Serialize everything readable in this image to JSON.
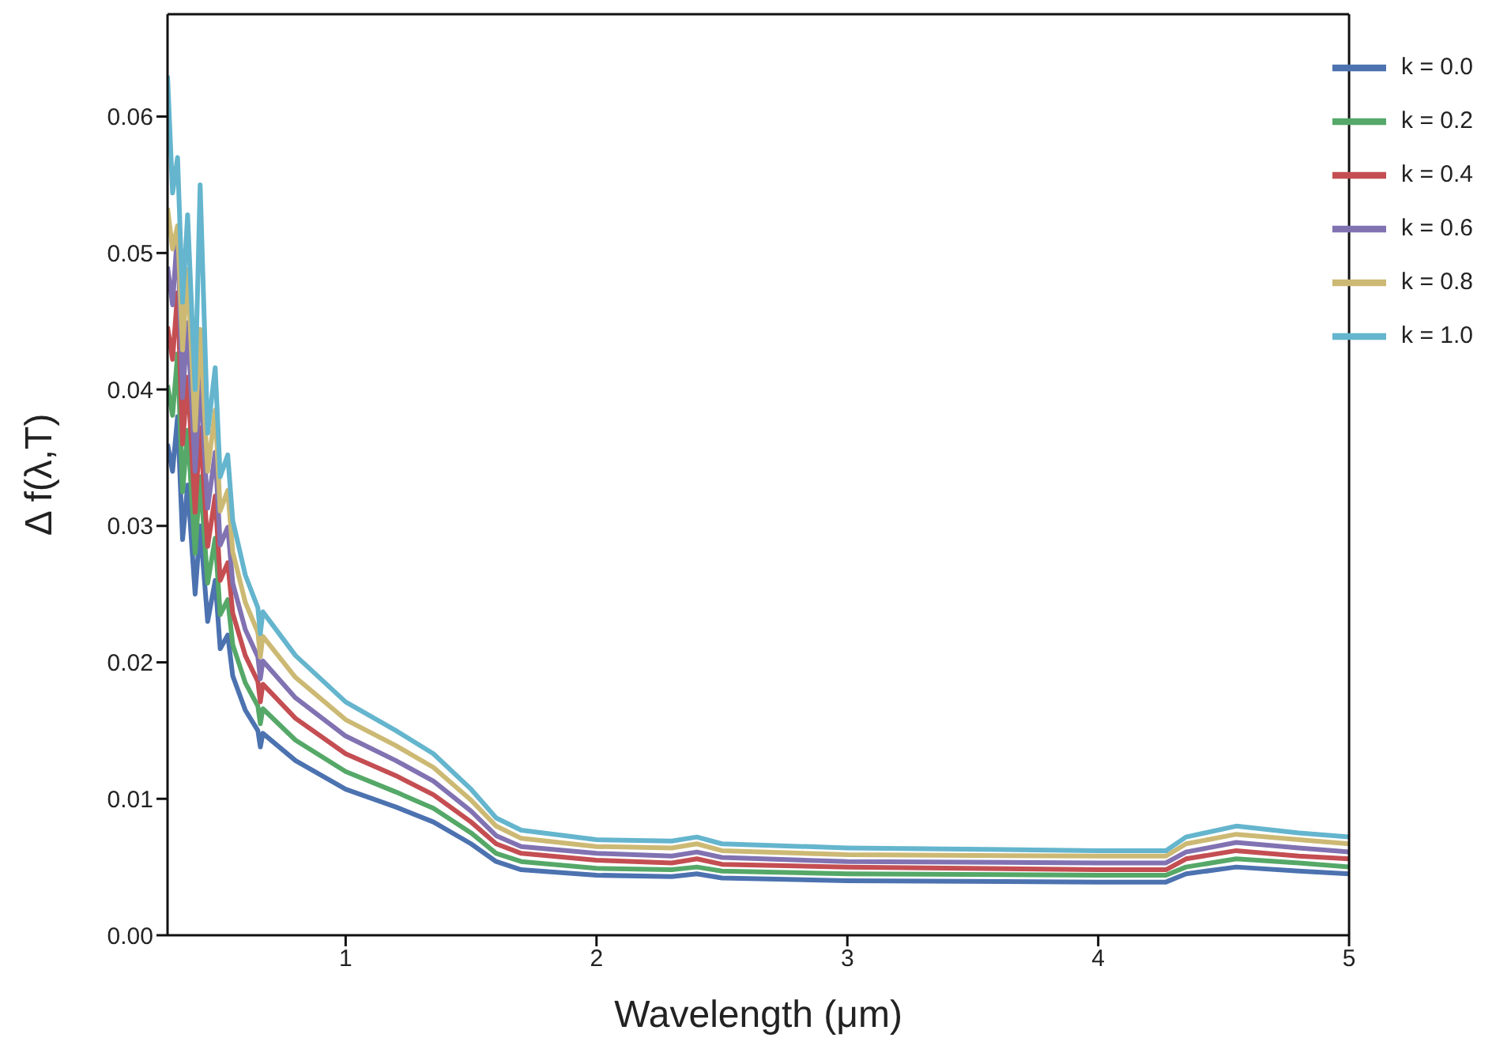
{
  "chart_data": {
    "type": "line",
    "xlabel": "Wavelength (μm)",
    "ylabel": "Δ f(λ,T)",
    "x": [
      0.29,
      0.31,
      0.33,
      0.35,
      0.37,
      0.4,
      0.42,
      0.45,
      0.48,
      0.5,
      0.53,
      0.55,
      0.6,
      0.65,
      0.66,
      0.67,
      0.8,
      1.0,
      1.2,
      1.35,
      1.5,
      1.6,
      1.7,
      2.0,
      2.3,
      2.4,
      2.5,
      3.0,
      4.0,
      4.27,
      4.35,
      4.55,
      4.8,
      5.0
    ],
    "series": [
      {
        "name": "k = 0.0",
        "color": "#4c72b0",
        "values": [
          0.036,
          0.034,
          0.038,
          0.029,
          0.033,
          0.025,
          0.03,
          0.023,
          0.026,
          0.021,
          0.022,
          0.019,
          0.0165,
          0.015,
          0.0138,
          0.0148,
          0.0128,
          0.0107,
          0.0094,
          0.0083,
          0.0067,
          0.0054,
          0.0048,
          0.0044,
          0.0043,
          0.0045,
          0.0042,
          0.004,
          0.0039,
          0.0039,
          0.0045,
          0.005,
          0.0047,
          0.0045
        ]
      },
      {
        "name": "k = 0.2",
        "color": "#55a868",
        "values": [
          0.0403,
          0.0381,
          0.0426,
          0.0325,
          0.037,
          0.028,
          0.0336,
          0.0258,
          0.0291,
          0.0235,
          0.0246,
          0.0213,
          0.0185,
          0.0168,
          0.0155,
          0.0166,
          0.0143,
          0.012,
          0.0105,
          0.0093,
          0.0075,
          0.006,
          0.0054,
          0.0049,
          0.0048,
          0.005,
          0.0047,
          0.0045,
          0.0044,
          0.0044,
          0.005,
          0.0056,
          0.0053,
          0.005
        ]
      },
      {
        "name": "k = 0.4",
        "color": "#c44e52",
        "values": [
          0.0446,
          0.0422,
          0.0471,
          0.036,
          0.0409,
          0.031,
          0.0372,
          0.0285,
          0.0322,
          0.026,
          0.0273,
          0.0236,
          0.0205,
          0.0186,
          0.0171,
          0.0184,
          0.0159,
          0.0133,
          0.0117,
          0.0103,
          0.0083,
          0.0067,
          0.006,
          0.0055,
          0.0053,
          0.0056,
          0.0052,
          0.005,
          0.0048,
          0.0048,
          0.0056,
          0.0062,
          0.0058,
          0.0056
        ]
      },
      {
        "name": "k = 0.6",
        "color": "#8172b2",
        "values": [
          0.049,
          0.0462,
          0.0517,
          0.0394,
          0.0449,
          0.034,
          0.0408,
          0.0313,
          0.0354,
          0.0286,
          0.0299,
          0.0258,
          0.0224,
          0.0204,
          0.0188,
          0.0201,
          0.0174,
          0.0146,
          0.0128,
          0.0113,
          0.0091,
          0.0073,
          0.0065,
          0.006,
          0.0058,
          0.0061,
          0.0057,
          0.0054,
          0.0053,
          0.0053,
          0.0061,
          0.0068,
          0.0064,
          0.0061
        ]
      },
      {
        "name": "k = 0.8",
        "color": "#ccb974",
        "values": [
          0.0533,
          0.0503,
          0.052,
          0.0429,
          0.0488,
          0.037,
          0.0444,
          0.034,
          0.0385,
          0.0311,
          0.0326,
          0.0281,
          0.0244,
          0.0222,
          0.0204,
          0.0219,
          0.0189,
          0.0158,
          0.0139,
          0.0123,
          0.0099,
          0.008,
          0.0071,
          0.0065,
          0.0064,
          0.0067,
          0.0062,
          0.0059,
          0.0058,
          0.0058,
          0.0067,
          0.0074,
          0.007,
          0.0067
        ]
      },
      {
        "name": "k = 1.0",
        "color": "#64b5cd",
        "values": [
          0.063,
          0.0544,
          0.057,
          0.0464,
          0.0528,
          0.04,
          0.055,
          0.0368,
          0.0416,
          0.0336,
          0.0352,
          0.0304,
          0.0264,
          0.024,
          0.0221,
          0.0237,
          0.0205,
          0.0171,
          0.015,
          0.0133,
          0.0107,
          0.0086,
          0.0077,
          0.007,
          0.0069,
          0.0072,
          0.0067,
          0.0064,
          0.0062,
          0.0062,
          0.0072,
          0.008,
          0.0075,
          0.0072
        ]
      }
    ],
    "xlim": [
      0.29,
      5
    ],
    "xticks": [
      1,
      2,
      3,
      4,
      5
    ],
    "ylim": [
      0,
      0.0675
    ],
    "yticks": [
      {
        "value": 0,
        "label": "0.00"
      },
      {
        "value": 0.01,
        "label": "0.01"
      },
      {
        "value": 0.02,
        "label": "0.02"
      },
      {
        "value": 0.03,
        "label": "0.03"
      },
      {
        "value": 0.04,
        "label": "0.04"
      },
      {
        "value": 0.05,
        "label": "0.05"
      },
      {
        "value": 0.06,
        "label": "0.06"
      }
    ],
    "grid": false,
    "legend": "top right",
    "marker": "none",
    "line_style": "solid"
  }
}
